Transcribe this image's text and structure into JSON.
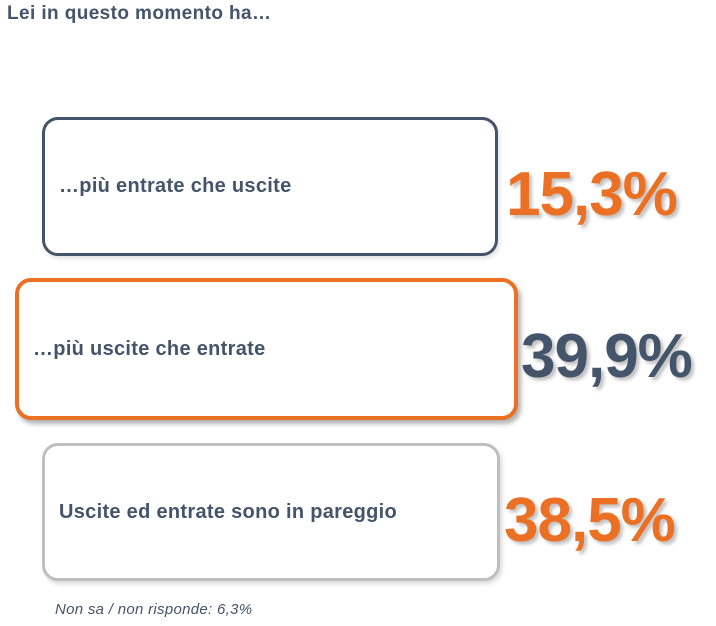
{
  "title": "Lei in questo momento ha…",
  "items": [
    {
      "label": "…più entrate che uscite",
      "value": "15,3%",
      "border_color": "#44546A",
      "value_color": "#EB7023"
    },
    {
      "label": "…più uscite che entrate",
      "value": "39,9%",
      "border_color": "#EB7023",
      "value_color": "#44546A"
    },
    {
      "label": "Uscite ed entrate sono in pareggio",
      "value": "38,5%",
      "border_color": "#BFBFBF",
      "value_color": "#EB7023"
    }
  ],
  "footnote": "Non sa / non risponde: 6,3%",
  "colors": {
    "slate": "#44546A",
    "orange": "#EB7023",
    "gray_border": "#BFBFBF",
    "background": "#FFFFFF"
  },
  "chart_data": {
    "type": "table",
    "title": "Lei in questo momento ha…",
    "categories": [
      "…più entrate che uscite",
      "…più uscite che entrate",
      "Uscite ed entrate sono in pareggio",
      "Non sa / non risponde"
    ],
    "values": [
      15.3,
      39.9,
      38.5,
      6.3
    ],
    "value_labels": [
      "15,3%",
      "39,9%",
      "38,5%",
      "6,3%"
    ],
    "unit": "%",
    "highlighted_category": "…più uscite che entrate",
    "legend_position": "none",
    "grid": false
  }
}
